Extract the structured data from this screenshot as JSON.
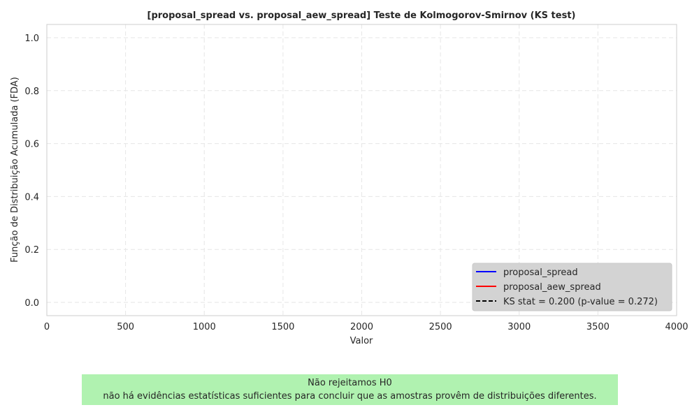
{
  "chart_data": {
    "type": "line",
    "title": "[proposal_spread vs. proposal_aew_spread] Teste de Kolmogorov-Smirnov (KS test)",
    "xlabel": "Valor",
    "ylabel": "Função de Distribuição Acumulada (FDA)",
    "xlim": [
      0,
      4000
    ],
    "ylim": [
      -0.05,
      1.05
    ],
    "xticks": [
      0,
      500,
      1000,
      1500,
      2000,
      2500,
      3000,
      3500,
      4000
    ],
    "yticks": [
      0.0,
      0.2,
      0.4,
      0.6,
      0.8,
      1.0
    ],
    "ytick_labels": [
      "0.0",
      "0.2",
      "0.4",
      "0.6",
      "0.8",
      "1.0"
    ],
    "grid": true,
    "legend_position": "lower-right",
    "series": [
      {
        "name": "proposal_spread",
        "color": "#0000ff",
        "style": "solid",
        "x": [],
        "y": []
      },
      {
        "name": "proposal_aew_spread",
        "color": "#ff0000",
        "style": "solid",
        "x": [],
        "y": []
      },
      {
        "name": "KS stat = 0.200 (p-value = 0.272)",
        "color": "#000000",
        "style": "dashed",
        "x": [],
        "y": []
      }
    ]
  },
  "result": {
    "heading": "Não rejeitamos H0",
    "detail": "não há evidências estatísticas suficientes para concluir que as amostras provêm de distribuições diferentes.",
    "color": "#b0f2b0"
  }
}
